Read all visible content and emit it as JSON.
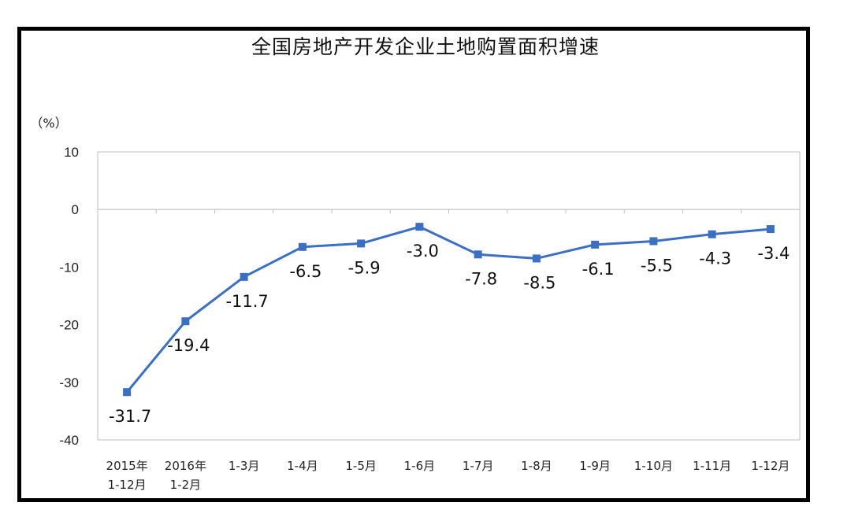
{
  "chart_data": {
    "type": "line",
    "title": "全国房地产开发企业土地购置面积增速",
    "ylabel": "（%）",
    "xlabel": "",
    "ylim": [
      -40,
      10
    ],
    "yticks": [
      10,
      0,
      -10,
      -20,
      -30,
      -40
    ],
    "categories": [
      [
        "2015年",
        "1-12月"
      ],
      [
        "2016年",
        "1-2月"
      ],
      [
        "1-3月"
      ],
      [
        "1-4月"
      ],
      [
        "1-5月"
      ],
      [
        "1-6月"
      ],
      [
        "1-7月"
      ],
      [
        "1-8月"
      ],
      [
        "1-9月"
      ],
      [
        "1-10月"
      ],
      [
        "1-11月"
      ],
      [
        "1-12月"
      ]
    ],
    "series": [
      {
        "values": [
          -31.7,
          -19.4,
          -11.7,
          -6.5,
          -5.9,
          -3.0,
          -7.8,
          -8.5,
          -6.1,
          -5.5,
          -4.3,
          -3.4
        ],
        "labels": [
          "-31.7",
          "-19.4",
          "-11.7",
          "-6.5",
          "-5.9",
          "-3.0",
          "-7.8",
          "-8.5",
          "-6.1",
          "-5.5",
          "-4.3",
          "-3.4"
        ],
        "color": "#3a6fc4"
      }
    ],
    "grid": false,
    "legend": "none"
  }
}
